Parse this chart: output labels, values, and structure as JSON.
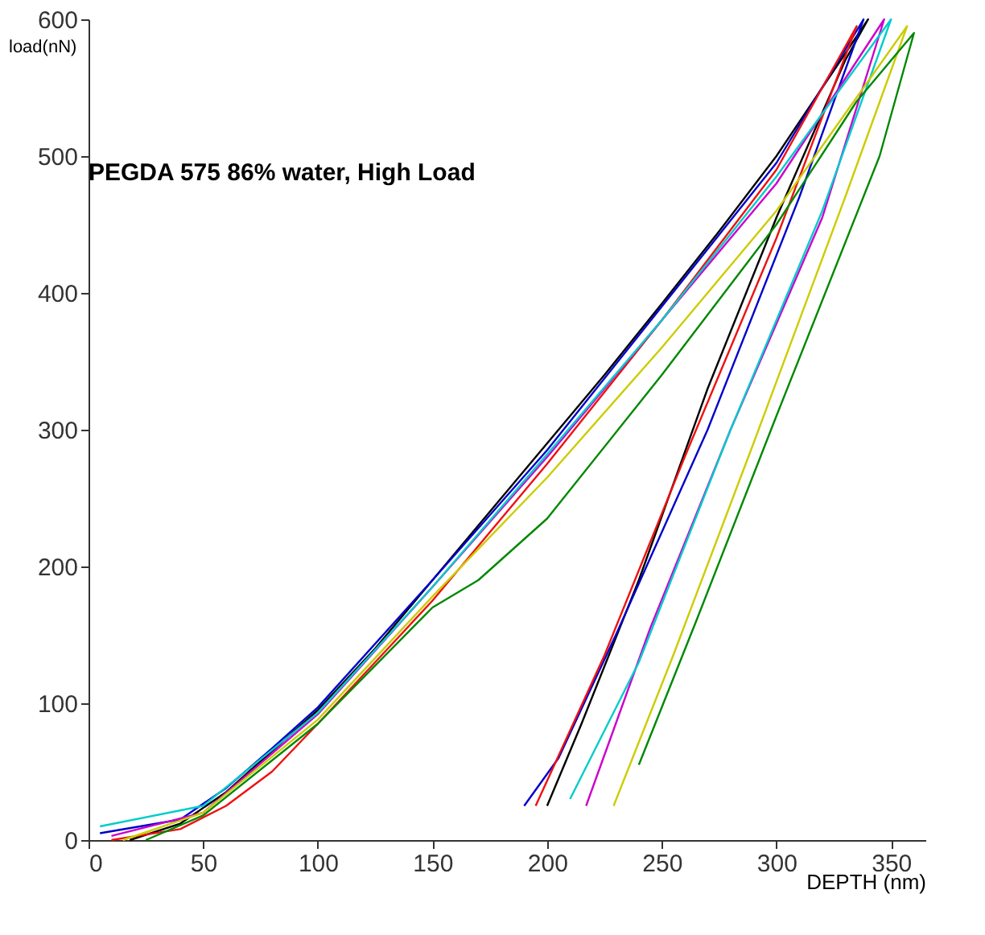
{
  "chart_data": {
    "type": "line",
    "title": "PEGDA 575 86% water, High Load",
    "xlabel": "DEPTH (nm)",
    "ylabel": "load(nN)",
    "xlim": [
      0,
      365
    ],
    "xticks": [
      0,
      50,
      100,
      150,
      200,
      250,
      300,
      350
    ],
    "ylim": [
      0,
      600
    ],
    "yticks": [
      0,
      100,
      200,
      300,
      400,
      500,
      600
    ],
    "grid": false,
    "legend": false,
    "marker": "none",
    "line_style": "solid",
    "series": [
      {
        "color": "#000000",
        "x": [
          18,
          40,
          60,
          80,
          100,
          125,
          150,
          175,
          200,
          225,
          250,
          275,
          300,
          320,
          340,
          330,
          300,
          270,
          240,
          215,
          200
        ],
        "values": [
          0,
          12,
          35,
          65,
          95,
          140,
          190,
          240,
          290,
          340,
          392,
          445,
          500,
          550,
          600,
          570,
          455,
          330,
          190,
          85,
          25
        ]
      },
      {
        "color": "#0000cc",
        "x": [
          5,
          40,
          60,
          80,
          100,
          150,
          200,
          250,
          300,
          338,
          310,
          270,
          230,
          205,
          190
        ],
        "values": [
          5,
          15,
          38,
          67,
          97,
          190,
          285,
          390,
          495,
          600,
          470,
          300,
          150,
          60,
          25
        ]
      },
      {
        "color": "#ee1111",
        "x": [
          10,
          40,
          60,
          80,
          100,
          150,
          200,
          250,
          300,
          335,
          300,
          260,
          225,
          195
        ],
        "values": [
          0,
          8,
          25,
          50,
          85,
          175,
          275,
          380,
          490,
          595,
          440,
          280,
          135,
          25
        ]
      },
      {
        "color": "#cc00cc",
        "x": [
          10,
          50,
          100,
          150,
          200,
          250,
          300,
          347,
          320,
          280,
          245,
          217
        ],
        "values": [
          3,
          20,
          92,
          185,
          280,
          380,
          480,
          600,
          455,
          300,
          155,
          25
        ]
      },
      {
        "color": "#00cccc",
        "x": [
          5,
          50,
          100,
          150,
          200,
          250,
          300,
          350,
          320,
          280,
          240,
          210
        ],
        "values": [
          10,
          25,
          93,
          185,
          282,
          380,
          485,
          600,
          460,
          300,
          130,
          30
        ]
      },
      {
        "color": "#cccc00",
        "x": [
          15,
          50,
          100,
          150,
          200,
          250,
          300,
          357,
          330,
          290,
          255,
          229
        ],
        "values": [
          0,
          20,
          88,
          178,
          265,
          360,
          460,
          595,
          470,
          290,
          135,
          25
        ]
      },
      {
        "color": "#008800",
        "x": [
          25,
          50,
          100,
          150,
          170,
          200,
          250,
          300,
          335,
          360,
          345,
          300,
          265,
          240
        ],
        "values": [
          0,
          18,
          85,
          170,
          190,
          235,
          340,
          450,
          540,
          590,
          500,
          310,
          160,
          55
        ]
      }
    ]
  }
}
